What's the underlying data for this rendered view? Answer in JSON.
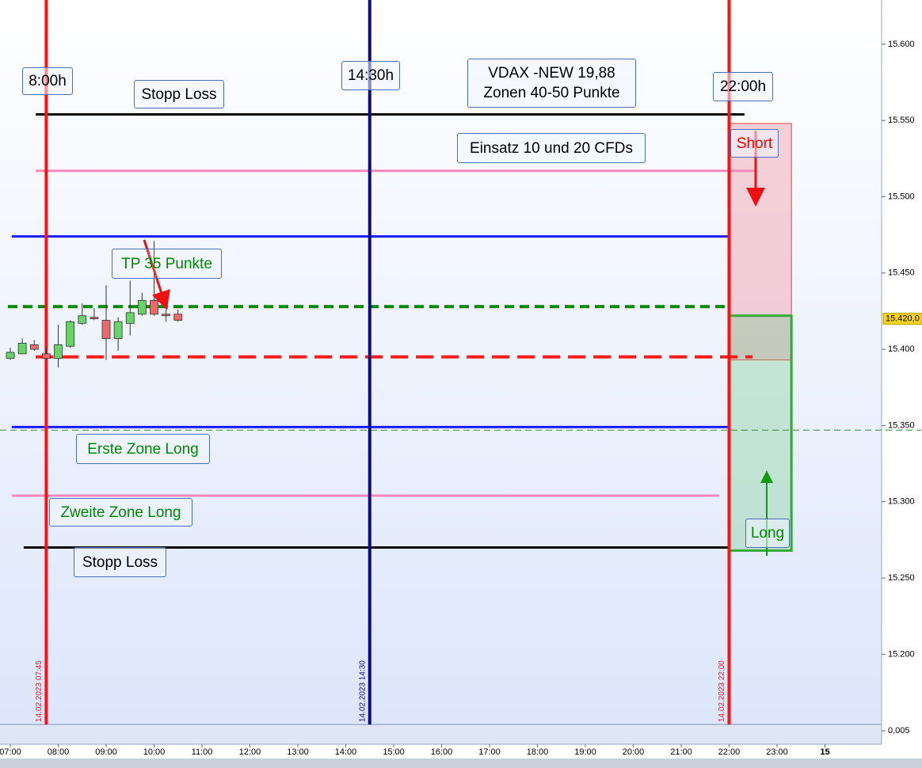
{
  "chart_data": {
    "type": "candlestick",
    "candles": {
      "x": [
        7,
        7.25,
        7.5,
        7.75,
        8,
        8.25,
        8.5,
        8.75,
        9,
        9.25,
        9.5,
        9.75,
        10,
        10.25,
        10.5
      ],
      "open": [
        15394,
        15397,
        15403,
        15397,
        15394,
        15402,
        15417,
        15421,
        15419,
        15407,
        15417,
        15423,
        15432,
        15423,
        15423
      ],
      "high": [
        15401,
        15407,
        15406,
        15401,
        15416,
        15419,
        15430,
        15427,
        15442,
        15421,
        15445,
        15437,
        15471,
        15426,
        15426
      ],
      "low": [
        15393,
        15397,
        15399,
        15393,
        15388,
        15401,
        15416,
        15419,
        15393,
        15399,
        15409,
        15422,
        15422,
        15418,
        15418
      ],
      "close": [
        15398,
        15404,
        15400,
        15394,
        15403,
        15418,
        15422,
        15420,
        15407,
        15418,
        15424,
        15432,
        15423,
        15422,
        15419
      ],
      "up_color": "#66d466",
      "down_color": "#e86a6a"
    },
    "xlim": [
      6.785,
      25.182
    ],
    "xticks": [
      {
        "value": 7,
        "label": "07:00"
      },
      {
        "value": 8,
        "label": "08:00"
      },
      {
        "value": 9,
        "label": "09:00"
      },
      {
        "value": 10,
        "label": "10:00"
      },
      {
        "value": 11,
        "label": "11:00"
      },
      {
        "value": 12,
        "label": "12:00"
      },
      {
        "value": 13,
        "label": "13:00"
      },
      {
        "value": 14,
        "label": "14:00"
      },
      {
        "value": 15,
        "label": "15:00"
      },
      {
        "value": 16,
        "label": "16:00"
      },
      {
        "value": 17,
        "label": "17:00"
      },
      {
        "value": 18,
        "label": "18:00"
      },
      {
        "value": 19,
        "label": "19:00"
      },
      {
        "value": 20,
        "label": "20:00"
      },
      {
        "value": 21,
        "label": "21:00"
      },
      {
        "value": 22,
        "label": "22:00"
      },
      {
        "value": 23,
        "label": "23:00"
      },
      {
        "value": 24,
        "label": "15"
      }
    ],
    "ylim": [
      15154,
      15629
    ],
    "yticks": [
      {
        "value": 15200,
        "label": "15.200"
      },
      {
        "value": 15250,
        "label": "15.250"
      },
      {
        "value": 15300,
        "label": "15.300"
      },
      {
        "value": 15350,
        "label": "15.350"
      },
      {
        "value": 15400,
        "label": "15.400"
      },
      {
        "value": 15450,
        "label": "15.450"
      },
      {
        "value": 15500,
        "label": "15.500"
      },
      {
        "value": 15550,
        "label": "15.550"
      },
      {
        "value": 15600,
        "label": "15.600"
      }
    ],
    "price_tag": {
      "value": 15420,
      "label": "15.420,0"
    },
    "levels": [
      {
        "value": 15554,
        "from": 7.53,
        "to": 22.32,
        "color": "#000000",
        "dashed": false
      },
      {
        "value": 15517,
        "from": 7.53,
        "to": 22.57,
        "color": "#ff88bb",
        "dashed": false
      },
      {
        "value": 15474,
        "from": 7.03,
        "to": 22.0,
        "color": "#1a1aff",
        "dashed": false
      },
      {
        "value": 15428,
        "from": 6.95,
        "to": 22.0,
        "color": "#008800",
        "dashed": true
      },
      {
        "value": 15395,
        "from": 7.53,
        "to": 22.49,
        "color": "#ff1a1a",
        "dashed": true
      },
      {
        "value": 15349,
        "from": 7.03,
        "to": 22.0,
        "color": "#1a1aff",
        "dashed": false
      },
      {
        "value": 15304,
        "from": 7.03,
        "to": 21.79,
        "color": "#ff88bb",
        "dashed": false
      },
      {
        "value": 15270,
        "from": 7.28,
        "to": 22.0,
        "color": "#000000",
        "dashed": false
      }
    ],
    "marker_line": {
      "value": 15347,
      "color": "#2e8b2e"
    },
    "verticals": [
      {
        "x": 7.75,
        "color": "#ff1010",
        "label": "14.02.2023 07:45"
      },
      {
        "x": 14.5,
        "color": "#0a0a90",
        "label": "14.02.2023 14:30"
      },
      {
        "x": 22.0,
        "color": "#ff1010",
        "label": "14.02.2023 22:00"
      }
    ],
    "zones": [
      {
        "from": 22.0,
        "to": 23.3,
        "top": 15548,
        "bottom": 15393,
        "fill": "rgba(240,140,155,0.38)",
        "stroke": "#e04040"
      },
      {
        "from": 22.0,
        "to": 23.3,
        "top": 15422,
        "bottom": 15268,
        "fill": "rgba(110,200,130,0.32)",
        "stroke": "#33aa33"
      }
    ],
    "annotations": [
      {
        "text": "8:00h",
        "color": "#000000"
      },
      {
        "text": "Stopp Loss",
        "color": "#000000"
      },
      {
        "text": "14:30h",
        "color": "#000000"
      },
      {
        "text": "VDAX -NEW 19,88\nZonen 40-50  Punkte",
        "color": "#000000"
      },
      {
        "text": "22:00h",
        "color": "#000000"
      },
      {
        "text": "Einsatz 10 und 20 CFDs",
        "color": "#000000"
      },
      {
        "text": "Short",
        "color": "#ff0000"
      },
      {
        "text": "TP 35 Punkte",
        "color": "#008800"
      },
      {
        "text": "Erste Zone Long",
        "color": "#008800"
      },
      {
        "text": "Zweite Zone Long",
        "color": "#008800"
      },
      {
        "text": "Stopp Loss",
        "color": "#000000"
      },
      {
        "text": "Long",
        "color": "#008800"
      }
    ],
    "lower_pane_ticks": [
      {
        "value": 0.005,
        "label": "0,005"
      }
    ]
  }
}
